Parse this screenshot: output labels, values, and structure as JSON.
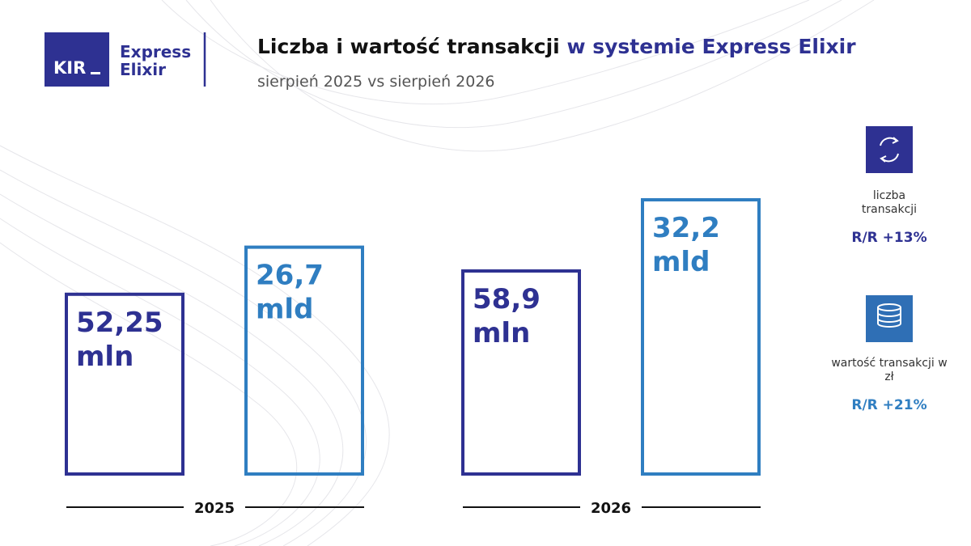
{
  "header": {
    "logo_text": "KIR",
    "brand": [
      "Express",
      "Elixir"
    ],
    "title": "Liczba i wartość transakcji",
    "title_highlight": "w systemie Express Elixir",
    "subtitle": "sierpień 2025 vs sierpień 2026"
  },
  "chart_data": {
    "type": "bar",
    "categories": [
      "2025",
      "2026"
    ],
    "series": [
      {
        "name": "liczba transakcji",
        "unit": "mln",
        "color": "#2e3192",
        "values": [
          52.25,
          58.9
        ],
        "value_labels": [
          "52,25",
          "58,9"
        ],
        "change": "R/R +13%"
      },
      {
        "name": "wartość transakcji w zł",
        "unit": "mld",
        "color": "#2f7ec1",
        "values": [
          26.7,
          32.2
        ],
        "value_labels": [
          "26,7",
          "32,2"
        ],
        "change": "R/R +21%"
      }
    ]
  }
}
